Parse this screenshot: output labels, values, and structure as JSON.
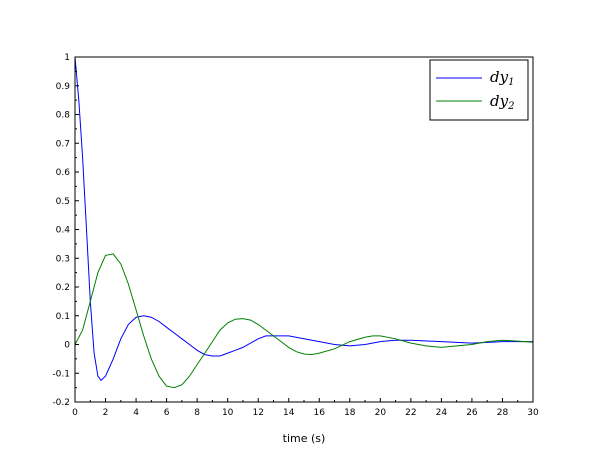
{
  "chart_data": {
    "type": "line",
    "title": "",
    "xlabel": "time (s)",
    "ylabel": "",
    "xlim": [
      0,
      30
    ],
    "ylim": [
      -0.2,
      1
    ],
    "xticks": [
      0,
      2,
      4,
      6,
      8,
      10,
      12,
      14,
      16,
      18,
      20,
      22,
      24,
      26,
      28,
      30
    ],
    "yticks": [
      -0.2,
      -0.1,
      0,
      0.1,
      0.2,
      0.3,
      0.4,
      0.5,
      0.6,
      0.7,
      0.8,
      0.9,
      1
    ],
    "ytick_labels": [
      "-0.2",
      "-0.1",
      "0",
      "0.1",
      "0.2",
      "0.3",
      "0.4",
      "0.5",
      "0.6",
      "0.7",
      "0.8",
      "0.9",
      "1"
    ],
    "grid": false,
    "legend_position": "top-right",
    "series": [
      {
        "name": "dy",
        "subscript": "1",
        "color": "#0000ff",
        "x": [
          0,
          0.25,
          0.5,
          0.75,
          1,
          1.25,
          1.5,
          1.7,
          2,
          2.5,
          3,
          3.5,
          4,
          4.5,
          5,
          5.5,
          6,
          6.5,
          7,
          7.5,
          8,
          8.5,
          9,
          9.5,
          10,
          10.5,
          11,
          11.5,
          12,
          12.5,
          13,
          14,
          15,
          16,
          17,
          18,
          19,
          20,
          21,
          22,
          24,
          26,
          28,
          30
        ],
        "y": [
          1,
          0.85,
          0.65,
          0.4,
          0.15,
          -0.03,
          -0.11,
          -0.125,
          -0.11,
          -0.05,
          0.02,
          0.07,
          0.095,
          0.1,
          0.095,
          0.08,
          0.06,
          0.04,
          0.02,
          0.0,
          -0.02,
          -0.035,
          -0.04,
          -0.04,
          -0.03,
          -0.02,
          -0.01,
          0.005,
          0.02,
          0.03,
          0.03,
          0.03,
          0.02,
          0.01,
          0.0,
          -0.005,
          0.0,
          0.01,
          0.015,
          0.015,
          0.01,
          0.005,
          0.01,
          0.01
        ]
      },
      {
        "name": "dy",
        "subscript": "2",
        "color": "#008000",
        "x": [
          0,
          0.5,
          1,
          1.5,
          2,
          2.5,
          3,
          3.5,
          4,
          4.5,
          5,
          5.5,
          6,
          6.5,
          7,
          7.5,
          8,
          8.5,
          9,
          9.5,
          10,
          10.5,
          11,
          11.5,
          12,
          12.5,
          13,
          13.5,
          14,
          14.5,
          15,
          15.5,
          16,
          17,
          18,
          19,
          19.5,
          20,
          21,
          22,
          23,
          24,
          25,
          26,
          27,
          28,
          29,
          30
        ],
        "y": [
          0,
          0.05,
          0.15,
          0.25,
          0.31,
          0.315,
          0.28,
          0.21,
          0.12,
          0.03,
          -0.05,
          -0.11,
          -0.145,
          -0.15,
          -0.14,
          -0.11,
          -0.07,
          -0.03,
          0.01,
          0.05,
          0.075,
          0.088,
          0.09,
          0.085,
          0.07,
          0.05,
          0.03,
          0.01,
          -0.01,
          -0.025,
          -0.033,
          -0.035,
          -0.03,
          -0.015,
          0.01,
          0.025,
          0.03,
          0.03,
          0.02,
          0.005,
          -0.005,
          -0.01,
          -0.005,
          0.0,
          0.01,
          0.015,
          0.012,
          0.008
        ]
      }
    ]
  }
}
